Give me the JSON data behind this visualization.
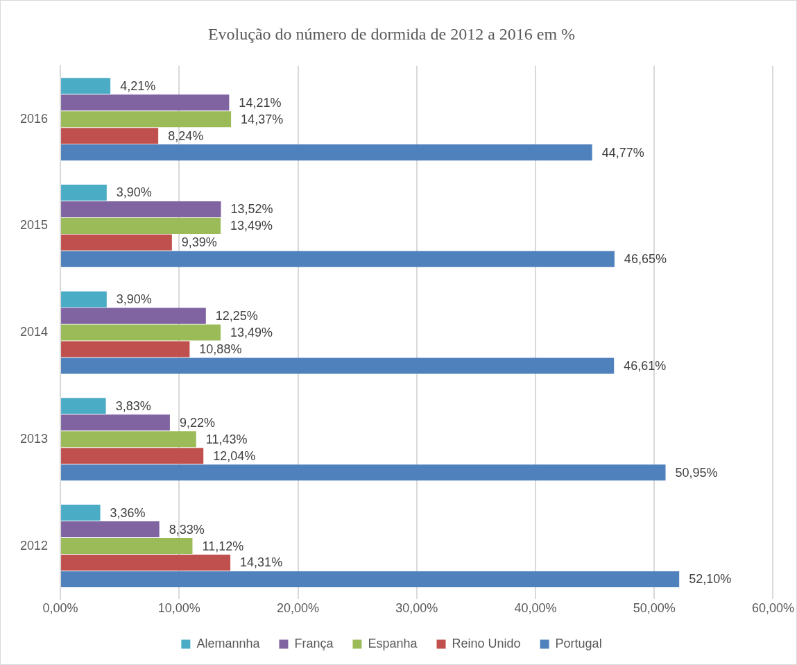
{
  "chart_data": {
    "type": "bar",
    "orientation": "horizontal",
    "title": "Evolução do número de dormida de 2012 a 2016 em %",
    "categories": [
      "2016",
      "2015",
      "2014",
      "2013",
      "2012"
    ],
    "series": [
      {
        "name": "Alemannha",
        "color": "#4bacc6",
        "values": [
          4.21,
          3.9,
          3.9,
          3.83,
          3.36
        ],
        "value_labels": [
          "4,21%",
          "3,90%",
          "3,90%",
          "3,83%",
          "3,36%"
        ]
      },
      {
        "name": "França",
        "color": "#8064a2",
        "values": [
          14.21,
          13.52,
          12.25,
          9.22,
          8.33
        ],
        "value_labels": [
          "14,21%",
          "13,52%",
          "12,25%",
          "9,22%",
          "8,33%"
        ]
      },
      {
        "name": "Espanha",
        "color": "#9bbb59",
        "values": [
          14.37,
          13.49,
          13.49,
          11.43,
          11.12
        ],
        "value_labels": [
          "14,37%",
          "13,49%",
          "13,49%",
          "11,43%",
          "11,12%"
        ]
      },
      {
        "name": "Reino Unido",
        "color": "#c0504d",
        "values": [
          8.24,
          9.39,
          10.88,
          12.04,
          14.31
        ],
        "value_labels": [
          "8,24%",
          "9,39%",
          "10,88%",
          "12,04%",
          "14,31%"
        ]
      },
      {
        "name": "Portugal",
        "color": "#4f81bd",
        "values": [
          44.77,
          46.65,
          46.61,
          50.95,
          52.1
        ],
        "value_labels": [
          "44,77%",
          "46,65%",
          "46,61%",
          "50,95%",
          "52,10%"
        ]
      }
    ],
    "xlim": [
      0,
      60
    ],
    "xticks": [
      {
        "value": 0,
        "label": "0,00%"
      },
      {
        "value": 10,
        "label": "10,00%"
      },
      {
        "value": 20,
        "label": "20,00%"
      },
      {
        "value": 30,
        "label": "30,00%"
      },
      {
        "value": 40,
        "label": "40,00%"
      },
      {
        "value": 50,
        "label": "50,00%"
      },
      {
        "value": 60,
        "label": "60,00%"
      }
    ],
    "grid": "x",
    "legend": "bottom"
  }
}
